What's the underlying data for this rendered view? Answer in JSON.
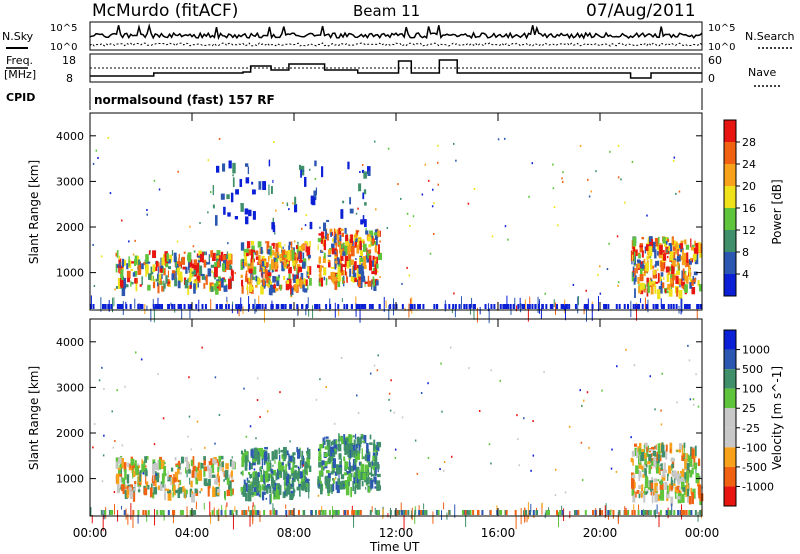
{
  "header": {
    "station": "McMurdo (fitACF)",
    "beam": "Beam 11",
    "date": "07/Aug/2011"
  },
  "noise_panel": {
    "left_label": "N.Sky",
    "left_ticks": [
      "10^5",
      "10^0"
    ],
    "right_ticks": [
      "10^5",
      "10^0"
    ],
    "right_label": "N.Search"
  },
  "freq_panel": {
    "left_label_line1": "Freq.",
    "left_label_line2": "[MHz]",
    "left_ticks": [
      "18",
      "8"
    ],
    "right_ticks": [
      "60",
      "0"
    ],
    "right_label": "Nave"
  },
  "cpid": {
    "label": "CPID",
    "value": "normalsound (fast) 157 RF"
  },
  "colors": {
    "power_scale": [
      "#0a1fd6",
      "#2b57b0",
      "#3e8f6a",
      "#5ec43c",
      "#f0e21a",
      "#f7a21a",
      "#f06212",
      "#e81410"
    ],
    "velocity_scale": [
      "#e81410",
      "#f06212",
      "#f7a21a",
      "#c8c8c8",
      "#c8c8c8",
      "#5ec43c",
      "#3e8f6a",
      "#2b57b0",
      "#0a1fd6"
    ],
    "ground_scatter": "#b0b0b0"
  },
  "chart_data": [
    {
      "type": "heatmap",
      "title": "",
      "xlabel": "Time UT",
      "ylabel": "Slant Range [km]",
      "x_range_hours": [
        0,
        24
      ],
      "ylim": [
        180,
        4500
      ],
      "x_ticks": [
        "00:00",
        "04:00",
        "08:00",
        "12:00",
        "16:00",
        "20:00",
        "00:00"
      ],
      "y_ticks": [
        1000,
        2000,
        3000,
        4000
      ],
      "colorbar_label": "Power [dB]",
      "colorbar_ticks": [
        "28",
        "24",
        "20",
        "16",
        "12",
        "8",
        "4"
      ],
      "colorbar_range": [
        0,
        30
      ],
      "regions": [
        {
          "t0": 1.0,
          "t1": 5.6,
          "r0": 700,
          "r1": 1500,
          "level": "mid"
        },
        {
          "t0": 5.9,
          "t1": 8.6,
          "r0": 650,
          "r1": 1700,
          "level": "high"
        },
        {
          "t0": 8.9,
          "t1": 11.3,
          "r0": 800,
          "r1": 2000,
          "level": "high"
        },
        {
          "t0": 21.2,
          "t1": 23.9,
          "r0": 600,
          "r1": 1800,
          "level": "high"
        },
        {
          "t0": 4.5,
          "t1": 11.0,
          "r0": 2000,
          "r1": 3500,
          "level": "low"
        }
      ]
    },
    {
      "type": "heatmap",
      "title": "",
      "xlabel": "Time UT",
      "ylabel": "Slant Range [km]",
      "x_range_hours": [
        0,
        24
      ],
      "ylim": [
        180,
        4500
      ],
      "x_ticks": [
        "00:00",
        "04:00",
        "08:00",
        "12:00",
        "16:00",
        "20:00",
        "00:00"
      ],
      "y_ticks": [
        1000,
        2000,
        3000,
        4000
      ],
      "colorbar_label": "Velocity [m s^-1]",
      "colorbar_ticks": [
        "1000",
        "500",
        "100",
        "25",
        "-25",
        "-100",
        "-500",
        "-1000"
      ],
      "colorbar_range": [
        -1000,
        1000
      ],
      "regions": [
        {
          "t0": 1.0,
          "t1": 5.6,
          "r0": 700,
          "r1": 1500,
          "v": "mixed"
        },
        {
          "t0": 5.9,
          "t1": 8.6,
          "r0": 650,
          "r1": 1700,
          "v": "positive"
        },
        {
          "t0": 8.9,
          "t1": 11.3,
          "r0": 800,
          "r1": 2000,
          "v": "positive"
        },
        {
          "t0": 21.2,
          "t1": 23.9,
          "r0": 600,
          "r1": 1800,
          "v": "negative"
        }
      ]
    }
  ]
}
